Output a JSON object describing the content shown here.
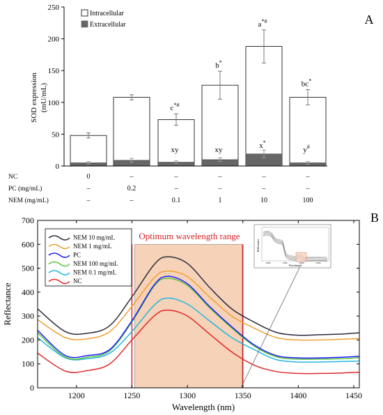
{
  "panel_a": {
    "label": "A",
    "ylabel_line1": "SOD expression",
    "ylabel_line2": "(mU/mL)",
    "legend": [
      "Intracellular",
      "Extracellular"
    ],
    "treatment_rows": [
      {
        "label": "NC",
        "cells": [
          "0",
          "–",
          "–",
          "–",
          "–",
          "–"
        ]
      },
      {
        "label": "PC (mg/mL)",
        "cells": [
          "–",
          "0.2",
          "–",
          "–",
          "–",
          "–"
        ]
      },
      {
        "label": "NEM (mg/mL)",
        "cells": [
          "–",
          "–",
          "0.1",
          "1",
          "10",
          "100"
        ]
      }
    ]
  },
  "panel_b": {
    "label": "B",
    "xlabel": "Wavelength (nm)",
    "ylabel": "Reflectance",
    "region_label": "Optimum wavelength range",
    "inset_xlabel": "Wavelength",
    "inset_ylabel": "Reflectance",
    "inset_xticks": [
      "1000",
      "1500",
      "2000",
      "2500"
    ]
  },
  "chart_data": [
    {
      "type": "bar",
      "ylim": [
        0,
        250
      ],
      "yticks": [
        0,
        50,
        100,
        150,
        200,
        250
      ],
      "categories": [
        "NC",
        "PC",
        "NEM 0.1",
        "NEM 1",
        "NEM 10",
        "NEM 100"
      ],
      "series": [
        {
          "name": "Intracellular",
          "color": "#ffffff",
          "values": [
            48,
            108,
            73,
            127,
            188,
            108
          ],
          "errors": [
            4,
            4,
            9,
            22,
            26,
            12
          ],
          "labels": [
            "",
            "",
            "c*#",
            "b*",
            "a*#",
            "bc*"
          ]
        },
        {
          "name": "Extracellular",
          "color": "#666666",
          "values": [
            5,
            9,
            6,
            10,
            19,
            5
          ],
          "errors": [
            2,
            3,
            2,
            3,
            6,
            2
          ],
          "labels": [
            "",
            "",
            "xy",
            "xy",
            "x*",
            "y#"
          ]
        }
      ]
    },
    {
      "type": "line",
      "xlim": [
        1165,
        1455
      ],
      "ylim": [
        0,
        700
      ],
      "xticks": [
        1200,
        1250,
        1300,
        1350,
        1400,
        1450
      ],
      "yticks": [
        0,
        100,
        200,
        300,
        400,
        500,
        600,
        700
      ],
      "highlight_range": [
        1250,
        1350
      ],
      "series": [
        {
          "name": "NEM 10 mg/mL",
          "color": "#2b2b3b",
          "x": [
            1165,
            1190,
            1210,
            1230,
            1250,
            1270,
            1282,
            1300,
            1320,
            1340,
            1360,
            1380,
            1400,
            1420,
            1440,
            1455
          ],
          "y": [
            330,
            235,
            228,
            260,
            380,
            515,
            548,
            520,
            420,
            330,
            275,
            232,
            220,
            222,
            225,
            230
          ]
        },
        {
          "name": "NEM 1 mg/mL",
          "color": "#f0a030",
          "x": [
            1165,
            1190,
            1210,
            1230,
            1250,
            1270,
            1282,
            1300,
            1320,
            1340,
            1360,
            1380,
            1400,
            1420,
            1440,
            1455
          ],
          "y": [
            285,
            210,
            205,
            235,
            340,
            460,
            488,
            465,
            380,
            300,
            250,
            210,
            200,
            200,
            203,
            206
          ]
        },
        {
          "name": "PC",
          "color": "#1a1aff",
          "x": [
            1165,
            1190,
            1210,
            1230,
            1250,
            1270,
            1282,
            1300,
            1320,
            1340,
            1360,
            1380,
            1400,
            1420,
            1440,
            1455
          ],
          "y": [
            240,
            135,
            135,
            160,
            280,
            430,
            466,
            435,
            340,
            255,
            180,
            135,
            125,
            125,
            128,
            132
          ]
        },
        {
          "name": "NEM 100 mg/mL",
          "color": "#5cc23a",
          "x": [
            1165,
            1190,
            1210,
            1230,
            1250,
            1270,
            1282,
            1300,
            1320,
            1340,
            1360,
            1380,
            1400,
            1420,
            1440,
            1455
          ],
          "y": [
            230,
            128,
            128,
            155,
            275,
            425,
            458,
            428,
            335,
            250,
            175,
            130,
            120,
            120,
            122,
            126
          ]
        },
        {
          "name": "NEM 0.1 mg/mL",
          "color": "#22b6e0",
          "x": [
            1165,
            1190,
            1210,
            1230,
            1250,
            1270,
            1282,
            1300,
            1320,
            1340,
            1360,
            1380,
            1400,
            1420,
            1440,
            1455
          ],
          "y": [
            210,
            125,
            122,
            145,
            235,
            345,
            375,
            350,
            280,
            210,
            160,
            118,
            108,
            108,
            110,
            112
          ]
        },
        {
          "name": "NC",
          "color": "#e02828",
          "x": [
            1165,
            1190,
            1210,
            1230,
            1250,
            1270,
            1282,
            1300,
            1320,
            1340,
            1360,
            1380,
            1400,
            1420,
            1440,
            1455
          ],
          "y": [
            145,
            70,
            72,
            100,
            200,
            300,
            325,
            300,
            225,
            150,
            95,
            68,
            60,
            60,
            62,
            65
          ]
        }
      ]
    }
  ]
}
